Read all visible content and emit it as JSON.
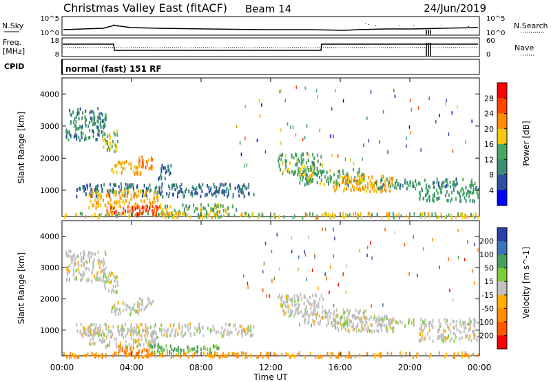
{
  "header": {
    "title": "Christmas Valley East (fitACF)",
    "beam": "Beam 14",
    "date": "24/Jun/2019"
  },
  "nsky_panel": {
    "left_label": "N.Sky",
    "left_ticks": [
      "10^5",
      "10^0"
    ],
    "right_ticks": [
      "10^5",
      "10^0"
    ],
    "right_label": "N.Search"
  },
  "freq_panel": {
    "left_label_line1": "Freq.",
    "left_label_line2": "[MHz]",
    "left_ticks": [
      "18",
      "8"
    ],
    "right_ticks": [
      "60",
      "0"
    ],
    "right_label": "Nave"
  },
  "cpid_panel": {
    "label": "CPID",
    "text": "normal (fast) 151 RF"
  },
  "x_axis": {
    "label": "Time UT",
    "ticks": [
      "00:00",
      "04:00",
      "08:00",
      "12:00",
      "16:00",
      "20:00",
      "00:00"
    ]
  },
  "colors": {
    "power_scale": [
      "#0000ff",
      "#2c4fa0",
      "#3d8c73",
      "#47a863",
      "#f2c80f",
      "#ff8c00",
      "#ff4500",
      "#ff0000"
    ],
    "velocity_scale": [
      "#2b3fa8",
      "#3a73b8",
      "#4a9e5c",
      "#7ccd3c",
      "#c0c0c0",
      "#ffb000",
      "#ff8c00",
      "#ff5a00",
      "#ff0000"
    ]
  },
  "chart_data": [
    {
      "type": "heatmap",
      "name": "power",
      "xlabel": "Time UT",
      "ylabel": "Slant Range [km]",
      "x_unit": "hours UT",
      "xlim": [
        0,
        24
      ],
      "ylim": [
        180,
        4500
      ],
      "y_ticks": [
        "1000",
        "2000",
        "3000",
        "4000"
      ],
      "colorbar_label": "Power [dB]",
      "colorbar_ticks": [
        "4",
        "8",
        "12",
        "16",
        "20",
        "24",
        "28"
      ],
      "regions": [
        {
          "t0": 0.2,
          "t1": 2.5,
          "r0": 2600,
          "r1": 3600,
          "value": 10
        },
        {
          "t0": 2.3,
          "t1": 3.2,
          "r0": 2250,
          "r1": 2900,
          "value": 16
        },
        {
          "t0": 2.8,
          "t1": 4.6,
          "r0": 1550,
          "r1": 1950,
          "value": 20
        },
        {
          "t0": 4.3,
          "t1": 5.2,
          "r0": 1700,
          "r1": 2100,
          "value": 22
        },
        {
          "t0": 5.5,
          "t1": 6.3,
          "r0": 1400,
          "r1": 1900,
          "value": 8
        },
        {
          "t0": 0.8,
          "t1": 11.0,
          "r0": 850,
          "r1": 1250,
          "value": 8
        },
        {
          "t0": 1.5,
          "t1": 5.5,
          "r0": 500,
          "r1": 1050,
          "value": 20
        },
        {
          "t0": 2.5,
          "t1": 5.8,
          "r0": 250,
          "r1": 550,
          "value": 27
        },
        {
          "t0": 5.5,
          "t1": 10.0,
          "r0": 250,
          "r1": 600,
          "value": 14
        },
        {
          "t0": 0.0,
          "t1": 24.0,
          "r0": 180,
          "r1": 330,
          "value": 17
        },
        {
          "t0": 12.4,
          "t1": 15.0,
          "r0": 1500,
          "r1": 2200,
          "value": 14
        },
        {
          "t0": 13.5,
          "t1": 17.5,
          "r0": 1200,
          "r1": 1700,
          "value": 13
        },
        {
          "t0": 15.5,
          "t1": 19.0,
          "r0": 1000,
          "r1": 1500,
          "value": 20
        },
        {
          "t0": 18.0,
          "t1": 23.8,
          "r0": 1100,
          "r1": 1400,
          "value": 11
        },
        {
          "t0": 20.5,
          "t1": 23.9,
          "r0": 700,
          "r1": 1100,
          "value": 12
        }
      ]
    },
    {
      "type": "heatmap",
      "name": "velocity",
      "xlabel": "Time UT",
      "ylabel": "Slant Range [km]",
      "x_unit": "hours UT",
      "xlim": [
        0,
        24
      ],
      "ylim": [
        180,
        4500
      ],
      "y_ticks": [
        "1000",
        "2000",
        "3000",
        "4000"
      ],
      "colorbar_label": "Velocity [m s^-1]",
      "colorbar_ticks": [
        "200",
        "100",
        "50",
        "15",
        "-15",
        "-50",
        "-100",
        "-200"
      ],
      "regions": [
        {
          "t0": 0.2,
          "t1": 2.5,
          "r0": 2600,
          "r1": 3600,
          "value": 0
        },
        {
          "t0": 2.3,
          "t1": 3.2,
          "r0": 2250,
          "r1": 2900,
          "value": 0
        },
        {
          "t0": 2.8,
          "t1": 4.6,
          "r0": 1550,
          "r1": 1950,
          "value": 0
        },
        {
          "t0": 4.3,
          "t1": 5.2,
          "r0": 1700,
          "r1": 2100,
          "value": 0
        },
        {
          "t0": 0.8,
          "t1": 11.0,
          "r0": 850,
          "r1": 1250,
          "value": 0
        },
        {
          "t0": 1.5,
          "t1": 5.5,
          "r0": 500,
          "r1": 1050,
          "value": 0
        },
        {
          "t0": 3.0,
          "t1": 5.0,
          "r0": 250,
          "r1": 550,
          "value": -60
        },
        {
          "t0": 5.0,
          "t1": 7.0,
          "r0": 280,
          "r1": 600,
          "value": 40
        },
        {
          "t0": 7.0,
          "t1": 9.0,
          "r0": 300,
          "r1": 550,
          "value": 30
        },
        {
          "t0": 0.0,
          "t1": 24.0,
          "r0": 180,
          "r1": 330,
          "value": -40
        },
        {
          "t0": 12.4,
          "t1": 15.0,
          "r0": 1500,
          "r1": 2200,
          "value": 0
        },
        {
          "t0": 13.5,
          "t1": 17.5,
          "r0": 1200,
          "r1": 1700,
          "value": 0
        },
        {
          "t0": 15.5,
          "t1": 19.0,
          "r0": 1000,
          "r1": 1500,
          "value": 0
        },
        {
          "t0": 18.0,
          "t1": 23.8,
          "r0": 1100,
          "r1": 1400,
          "value": 0
        },
        {
          "t0": 20.5,
          "t1": 23.9,
          "r0": 700,
          "r1": 1100,
          "value": 0
        }
      ]
    }
  ]
}
